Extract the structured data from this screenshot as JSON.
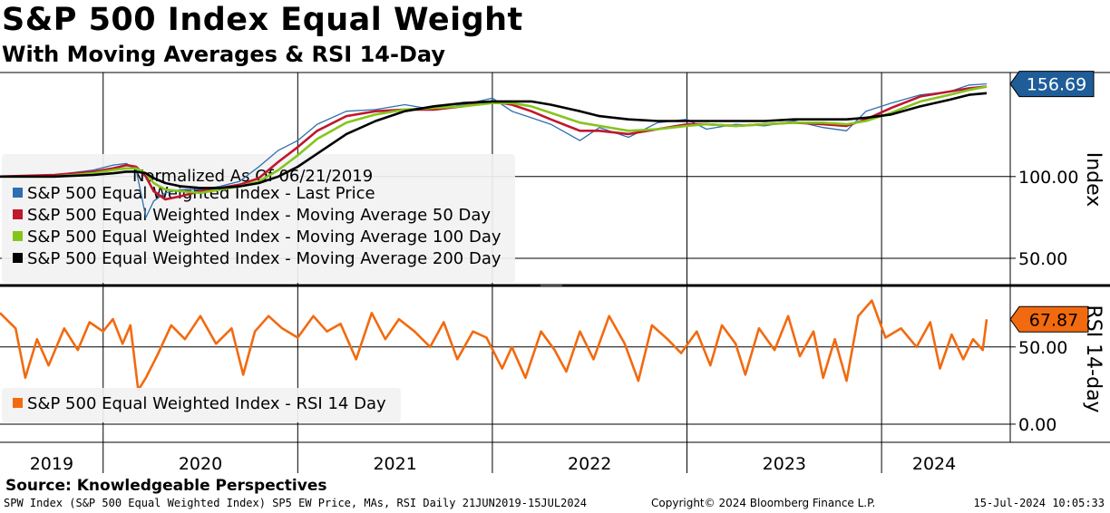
{
  "title": "S&P 500 Index Equal Weight",
  "subtitle": "With Moving Averages & RSI 14-Day",
  "source": "Source: Knowledgeable Perspectives",
  "footer": {
    "left": "SPW Index (S&P 500 Equal Weighted Index) SP5 EW Price, MAs, RSI  Daily 21JUN2019-15JUL2024",
    "center": "Copyright© 2024 Bloomberg Finance L.P.",
    "right": "15-Jul-2024 10:05:33"
  },
  "colors": {
    "price": "#2e6fb0",
    "ma50": "#c0162e",
    "ma100": "#84c51c",
    "ma200": "#000000",
    "rsi": "#f26a0f",
    "legend_bg": "#f2f2f2",
    "price_tag": "#1f5d99",
    "rsi_tag": "#f26a0f"
  },
  "chart_data": [
    {
      "type": "line",
      "panel": "price",
      "ylabel": "Index",
      "ylim": [
        35,
        162
      ],
      "yticks": [
        50,
        100
      ],
      "ytick_labels": [
        "50.00",
        "100.00"
      ],
      "last_value_label": "156.69",
      "legend_title": "Normalized As Of 06/21/2019",
      "legend_position": "upper-left",
      "x": [
        2019.47,
        2019.75,
        2019.95,
        2020.05,
        2020.12,
        2020.17,
        2020.22,
        2020.26,
        2020.32,
        2020.4,
        2020.5,
        2020.6,
        2020.7,
        2020.8,
        2020.9,
        2021.0,
        2021.1,
        2021.25,
        2021.4,
        2021.55,
        2021.7,
        2021.85,
        2022.0,
        2022.1,
        2022.2,
        2022.3,
        2022.45,
        2022.55,
        2022.7,
        2022.85,
        2023.0,
        2023.1,
        2023.25,
        2023.4,
        2023.55,
        2023.7,
        2023.82,
        2023.92,
        2024.05,
        2024.2,
        2024.35,
        2024.45,
        2024.54
      ],
      "series": [
        {
          "name": "S&P 500 Equal Weighted Index - Last Price",
          "color_key": "price",
          "values": [
            100,
            101,
            104,
            107,
            108,
            104,
            75,
            85,
            90,
            92,
            92,
            94,
            97,
            106,
            116,
            122,
            132,
            140,
            141,
            144,
            141,
            144,
            148,
            140,
            136,
            132,
            122,
            130,
            124,
            133,
            135,
            129,
            132,
            131,
            134,
            130,
            128,
            140,
            145,
            150,
            152,
            156,
            156.69
          ]
        },
        {
          "name": "S&P 500 Equal Weighted Index - Moving Average 50 Day",
          "color_key": "ma50",
          "values": [
            100,
            101,
            103,
            105,
            107,
            106,
            100,
            91,
            86,
            88,
            91,
            93,
            95,
            99,
            109,
            118,
            128,
            137,
            140,
            141,
            141,
            143,
            146,
            144,
            140,
            135,
            128,
            128,
            126,
            129,
            132,
            132,
            131,
            132,
            133,
            132,
            131,
            135,
            142,
            149,
            152,
            154,
            155
          ]
        },
        {
          "name": "S&P 500 Equal Weighted Index - Moving Average 100 Day",
          "color_key": "ma100",
          "values": [
            100,
            100,
            102,
            104,
            105,
            105,
            102,
            96,
            92,
            91,
            90,
            92,
            94,
            97,
            104,
            113,
            123,
            133,
            138,
            141,
            142,
            143,
            145,
            145,
            143,
            139,
            133,
            131,
            128,
            129,
            131,
            132,
            131,
            132,
            133,
            133,
            132,
            134,
            139,
            146,
            150,
            153,
            155
          ]
        },
        {
          "name": "S&P 500 Equal Weighted Index - Moving Average 200 Day",
          "color_key": "ma200",
          "values": [
            100,
            100,
            101,
            102,
            103,
            103,
            102,
            99,
            96,
            94,
            93,
            93,
            94,
            96,
            100,
            106,
            114,
            126,
            134,
            140,
            143,
            145,
            146,
            146,
            146,
            144,
            140,
            137,
            135,
            134,
            134,
            134,
            134,
            134,
            135,
            135,
            135,
            136,
            138,
            143,
            147,
            150,
            151
          ]
        }
      ]
    },
    {
      "type": "line",
      "panel": "rsi",
      "ylabel": "RSI 14-day",
      "ylim": [
        -10,
        88
      ],
      "yticks": [
        0,
        50
      ],
      "ytick_labels": [
        "0.00",
        "50.00"
      ],
      "last_value_label": "67.87",
      "legend_position": "lower-left",
      "x": [
        2019.47,
        2019.55,
        2019.6,
        2019.66,
        2019.72,
        2019.8,
        2019.87,
        2019.93,
        2020.0,
        2020.05,
        2020.1,
        2020.14,
        2020.18,
        2020.22,
        2020.28,
        2020.35,
        2020.42,
        2020.5,
        2020.58,
        2020.66,
        2020.72,
        2020.78,
        2020.85,
        2020.92,
        2021.0,
        2021.08,
        2021.15,
        2021.22,
        2021.3,
        2021.38,
        2021.45,
        2021.52,
        2021.6,
        2021.68,
        2021.75,
        2021.82,
        2021.9,
        2021.97,
        2022.05,
        2022.1,
        2022.17,
        2022.25,
        2022.32,
        2022.38,
        2022.45,
        2022.52,
        2022.6,
        2022.68,
        2022.75,
        2022.82,
        2022.9,
        2022.97,
        2023.05,
        2023.12,
        2023.18,
        2023.25,
        2023.3,
        2023.37,
        2023.45,
        2023.52,
        2023.58,
        2023.65,
        2023.7,
        2023.76,
        2023.82,
        2023.88,
        2023.95,
        2024.02,
        2024.1,
        2024.18,
        2024.25,
        2024.3,
        2024.36,
        2024.42,
        2024.47,
        2024.52,
        2024.54
      ],
      "series": [
        {
          "name": "S&P 500 Equal Weighted Index - RSI 14 Day",
          "color_key": "rsi",
          "values": [
            72,
            62,
            30,
            55,
            38,
            62,
            48,
            66,
            60,
            68,
            52,
            64,
            22,
            30,
            45,
            64,
            55,
            70,
            52,
            62,
            32,
            60,
            70,
            62,
            56,
            70,
            60,
            65,
            42,
            72,
            55,
            68,
            60,
            50,
            66,
            42,
            60,
            56,
            36,
            50,
            30,
            60,
            48,
            34,
            60,
            42,
            70,
            52,
            28,
            64,
            55,
            46,
            60,
            38,
            64,
            52,
            32,
            62,
            48,
            70,
            44,
            60,
            30,
            55,
            28,
            70,
            80,
            56,
            62,
            50,
            66,
            36,
            58,
            42,
            55,
            48,
            67.87
          ]
        }
      ]
    }
  ],
  "xaxis": {
    "years": [
      "2019",
      "2020",
      "2021",
      "2022",
      "2023",
      "2024"
    ]
  }
}
